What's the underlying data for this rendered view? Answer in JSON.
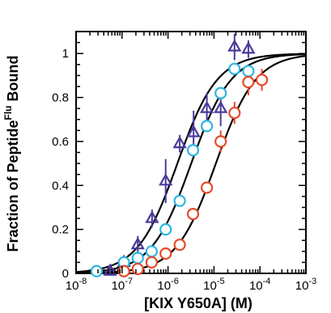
{
  "chart_data": {
    "type": "scatter",
    "title": "",
    "xlabel": "[KIX Y650A] (M)",
    "ylabel": {
      "prefix": "Fraction of Peptide",
      "superscript": "Flu",
      "suffix": " Bound"
    },
    "x_scale": "log",
    "xlim": [
      1e-08,
      0.001
    ],
    "ylim": [
      0,
      1.1
    ],
    "x_ticks": [
      {
        "value": 1e-08,
        "base": "10",
        "exp": "-8"
      },
      {
        "value": 1e-07,
        "base": "10",
        "exp": "-7"
      },
      {
        "value": 1e-06,
        "base": "10",
        "exp": "-6"
      },
      {
        "value": 1e-05,
        "base": "10",
        "exp": "-5"
      },
      {
        "value": 0.0001,
        "base": "10",
        "exp": "-4"
      },
      {
        "value": 0.001,
        "base": "10",
        "exp": "-3"
      }
    ],
    "y_ticks": [
      {
        "value": 0,
        "label": "0"
      },
      {
        "value": 0.2,
        "label": "0.2"
      },
      {
        "value": 0.4,
        "label": "0.4"
      },
      {
        "value": 0.6,
        "label": "0.6"
      },
      {
        "value": 0.8,
        "label": "0.8"
      },
      {
        "value": 1,
        "label": "1"
      }
    ],
    "grid": false,
    "series": [
      {
        "marker": "triangle",
        "color": "#4b3a9a",
        "fit_kd": 1.6e-06,
        "points": [
          {
            "x": 5.5e-08,
            "y": 0.01,
            "err": 0.02
          },
          {
            "x": 1.1e-07,
            "y": 0.05,
            "err": 0.03
          },
          {
            "x": 2.2e-07,
            "y": 0.13,
            "err": 0.04
          },
          {
            "x": 4.5e-07,
            "y": 0.25,
            "err": 0.04
          },
          {
            "x": 8.9e-07,
            "y": 0.42,
            "err": 0.1
          },
          {
            "x": 1.8e-06,
            "y": 0.59,
            "err": 0.04
          },
          {
            "x": 3.6e-06,
            "y": 0.64,
            "err": 0.1
          },
          {
            "x": 7e-06,
            "y": 0.75,
            "err": 0.07
          },
          {
            "x": 1.4e-05,
            "y": 0.75,
            "err": 0.08
          },
          {
            "x": 2.8e-05,
            "y": 1.03,
            "err": 0.06
          },
          {
            "x": 5.6e-05,
            "y": 1.02,
            "err": 0.04
          }
        ]
      },
      {
        "marker": "circle",
        "color": "#2eb5e0",
        "fit_kd": 3.2e-06,
        "points": [
          {
            "x": 2.8e-08,
            "y": 0.01,
            "err": 0.0
          },
          {
            "x": 1.1e-07,
            "y": 0.05,
            "err": 0.0
          },
          {
            "x": 2.2e-07,
            "y": 0.07,
            "err": 0.0
          },
          {
            "x": 4.4e-07,
            "y": 0.1,
            "err": 0.0
          },
          {
            "x": 8.9e-07,
            "y": 0.2,
            "err": 0.0
          },
          {
            "x": 1.8e-06,
            "y": 0.33,
            "err": 0.0
          },
          {
            "x": 3.5e-06,
            "y": 0.56,
            "err": 0.0
          },
          {
            "x": 7e-06,
            "y": 0.67,
            "err": 0.0
          },
          {
            "x": 1.4e-05,
            "y": 0.82,
            "err": 0.0
          },
          {
            "x": 2.8e-05,
            "y": 0.93,
            "err": 0.0
          },
          {
            "x": 5.6e-05,
            "y": 0.92,
            "err": 0.0
          }
        ]
      },
      {
        "marker": "circle",
        "color": "#e64a2a",
        "fit_kd": 1.1e-05,
        "points": [
          {
            "x": 1.1e-07,
            "y": 0.01,
            "err": 0.0
          },
          {
            "x": 2.2e-07,
            "y": 0.02,
            "err": 0.0
          },
          {
            "x": 4.4e-07,
            "y": 0.05,
            "err": 0.0
          },
          {
            "x": 8.9e-07,
            "y": 0.09,
            "err": 0.0
          },
          {
            "x": 1.8e-06,
            "y": 0.13,
            "err": 0.0
          },
          {
            "x": 3.5e-06,
            "y": 0.27,
            "err": 0.0
          },
          {
            "x": 7e-06,
            "y": 0.39,
            "err": 0.0
          },
          {
            "x": 1.4e-05,
            "y": 0.6,
            "err": 0.05
          },
          {
            "x": 2.8e-05,
            "y": 0.73,
            "err": 0.05
          },
          {
            "x": 5.6e-05,
            "y": 0.87,
            "err": 0.06
          },
          {
            "x": 0.00011,
            "y": 0.88,
            "err": 0.05
          }
        ]
      }
    ]
  }
}
